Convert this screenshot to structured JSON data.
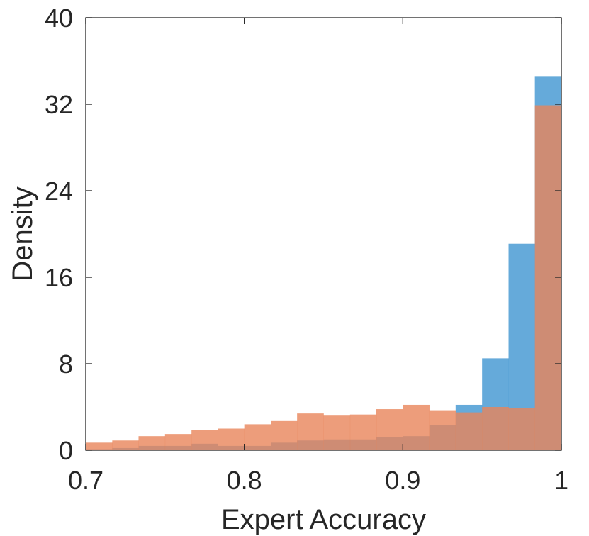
{
  "chart_data": {
    "type": "histogram",
    "xlabel": "Expert Accuracy",
    "ylabel": "Density",
    "xlim": [
      0.7,
      1.0
    ],
    "ylim": [
      0,
      40
    ],
    "x_ticks": [
      "0.7",
      "0.8",
      "0.9",
      "1"
    ],
    "y_ticks": [
      "0",
      "8",
      "16",
      "24",
      "32",
      "40"
    ],
    "bin_edges": [
      0.7,
      0.7167,
      0.7333,
      0.75,
      0.7667,
      0.7833,
      0.8,
      0.8167,
      0.8333,
      0.85,
      0.8667,
      0.8833,
      0.9,
      0.9167,
      0.9333,
      0.95,
      0.9667,
      0.9833,
      1.0
    ],
    "series": [
      {
        "color": "#4a9bd4",
        "opacity": 0.85,
        "values": [
          0.1,
          0.2,
          0.4,
          0.4,
          0.6,
          0.4,
          0.4,
          0.7,
          0.9,
          1.0,
          1.0,
          1.2,
          1.3,
          2.3,
          4.2,
          8.5,
          19.1,
          34.6
        ]
      },
      {
        "color": "#e8845a",
        "opacity": 0.8,
        "values": [
          0.7,
          0.9,
          1.3,
          1.5,
          1.9,
          2.0,
          2.4,
          2.7,
          3.4,
          3.2,
          3.3,
          3.8,
          4.2,
          3.7,
          3.5,
          4.0,
          3.9,
          31.9
        ]
      }
    ],
    "grid": false,
    "box": true
  }
}
